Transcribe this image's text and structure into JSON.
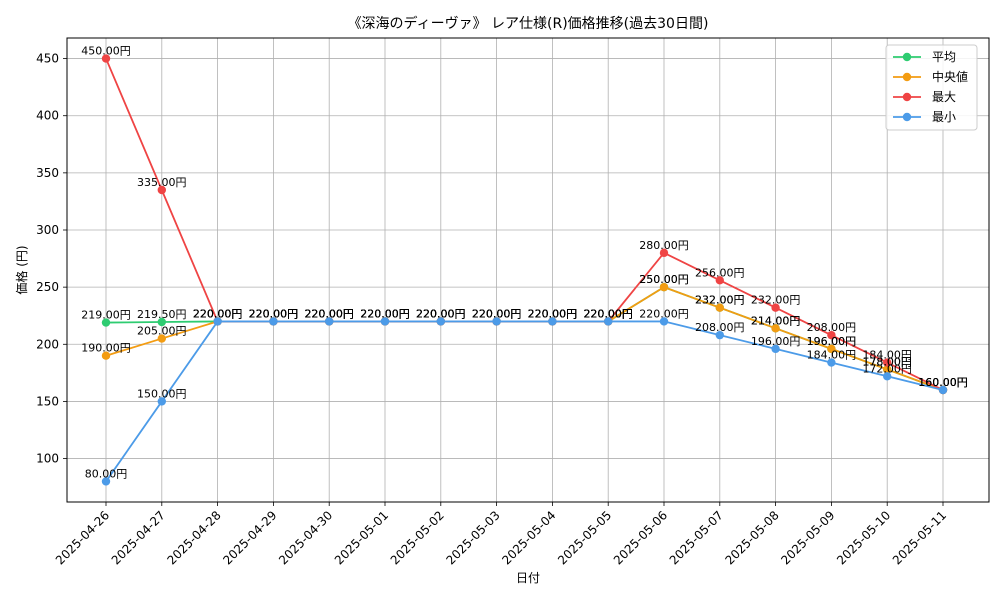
{
  "chart_data": {
    "type": "line",
    "title": "《深海のディーヴァ》 レア仕様(R)価格推移(過去30日間)",
    "xlabel": "日付",
    "ylabel": "価格 (円)",
    "ylim": [
      62,
      468
    ],
    "yticks": [
      100,
      150,
      200,
      250,
      300,
      350,
      400,
      450
    ],
    "grid": true,
    "legend_position": "top-right",
    "categories": [
      "2025-04-26",
      "2025-04-27",
      "2025-04-28",
      "2025-04-29",
      "2025-04-30",
      "2025-05-01",
      "2025-05-02",
      "2025-05-03",
      "2025-05-04",
      "2025-05-05",
      "2025-05-06",
      "2025-05-07",
      "2025-05-08",
      "2025-05-09",
      "2025-05-10",
      "2025-05-11"
    ],
    "series": [
      {
        "name": "平均",
        "color": "#2ecc71",
        "values": [
          219.0,
          219.5,
          220,
          220,
          220,
          220,
          220,
          220,
          220,
          220,
          250,
          232,
          214,
          196,
          178,
          160
        ],
        "labels": [
          "219.00円",
          "219.50円",
          "220.00円",
          "220.00円",
          "220.00円",
          "220.00円",
          "220.00円",
          "220.00円",
          "220.00円",
          "220.00円",
          "250.00円",
          "232.00円",
          "214.00円",
          "196.00円",
          "178.00円",
          "160.00円"
        ]
      },
      {
        "name": "中央値",
        "color": "#f39c12",
        "values": [
          190,
          205,
          220,
          220,
          220,
          220,
          220,
          220,
          220,
          220,
          250,
          232,
          214,
          196,
          178,
          160
        ],
        "labels": [
          "190.00円",
          "205.00円",
          "220.00円",
          "220.00円",
          "220.00円",
          "220.00円",
          "220.00円",
          "220.00円",
          "220.00円",
          "220.00円",
          "250.00円",
          "232.00円",
          "214.00円",
          "196.00円",
          "178.00円",
          "160.00円"
        ]
      },
      {
        "name": "最大",
        "color": "#ef4444",
        "values": [
          450,
          335,
          220,
          220,
          220,
          220,
          220,
          220,
          220,
          220,
          280,
          256,
          232,
          208,
          184,
          160
        ],
        "labels": [
          "450.00円",
          "335.00円",
          "220.00円",
          "220.00円",
          "220.00円",
          "220.00円",
          "220.00円",
          "220.00円",
          "220.00円",
          "220.00円",
          "280.00円",
          "256.00円",
          "232.00円",
          "208.00円",
          "184.00円",
          "160.00円"
        ]
      },
      {
        "name": "最小",
        "color": "#4c9be8",
        "values": [
          80,
          150,
          220,
          220,
          220,
          220,
          220,
          220,
          220,
          220,
          220,
          208,
          196,
          184,
          172,
          160
        ],
        "labels": [
          "80.00円",
          "150.00円",
          "220.00円",
          "220.00円",
          "220.00円",
          "220.00円",
          "220.00円",
          "220.00円",
          "220.00円",
          "220.00円",
          "220.00円",
          "208.00円",
          "196.00円",
          "184.00円",
          "172.00円",
          "160.00円"
        ]
      }
    ]
  }
}
